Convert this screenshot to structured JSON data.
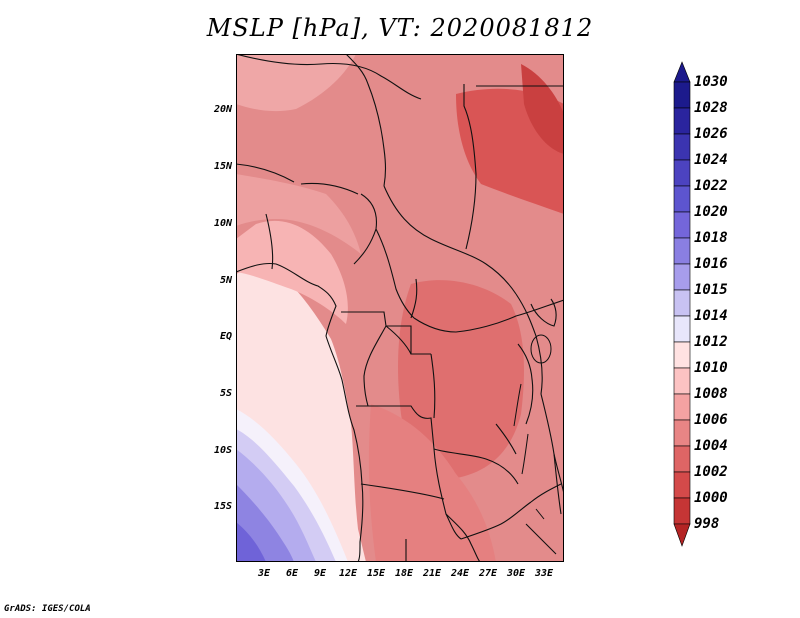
{
  "title": "MSLP [hPa], VT: 2020081812",
  "credit": "GrADS: IGES/COLA",
  "lat_labels": [
    "20N",
    "15N",
    "10N",
    "5N",
    "EQ",
    "5S",
    "10S",
    "15S"
  ],
  "lon_labels": [
    "3E",
    "6E",
    "9E",
    "12E",
    "15E",
    "18E",
    "21E",
    "24E",
    "27E",
    "30E",
    "33E"
  ],
  "colorbar": {
    "levels": [
      "1030",
      "1028",
      "1026",
      "1024",
      "1022",
      "1020",
      "1018",
      "1016",
      "1015",
      "1014",
      "1012",
      "1010",
      "1008",
      "1006",
      "1004",
      "1002",
      "1000",
      "998"
    ],
    "colors": [
      "#1c1a8c",
      "#2a249e",
      "#3b34b0",
      "#4c43c0",
      "#5d55cf",
      "#7466da",
      "#8a7fe2",
      "#a79dec",
      "#c8c2f2",
      "#e8e6fb",
      "#ffe2e2",
      "#fcc3c3",
      "#f4a2a2",
      "#e88585",
      "#de6565",
      "#d44a4a",
      "#c53535",
      "#b42424"
    ],
    "arrow_top": "#1c1a8c",
    "arrow_bottom": "#b42424"
  }
}
